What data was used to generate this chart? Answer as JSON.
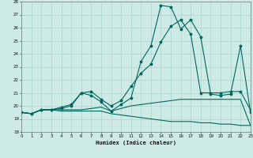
{
  "xlabel": "Humidex (Indice chaleur)",
  "xlim_min": 0,
  "xlim_max": 23,
  "ylim_min": 18,
  "ylim_max": 28,
  "yticks": [
    18,
    19,
    20,
    21,
    22,
    23,
    24,
    25,
    26,
    27,
    28
  ],
  "xticks": [
    0,
    1,
    2,
    3,
    4,
    5,
    6,
    7,
    8,
    9,
    10,
    11,
    12,
    13,
    14,
    15,
    16,
    17,
    18,
    19,
    20,
    21,
    22,
    23
  ],
  "bg_color": "#ceeae4",
  "grid_color": "#a8d4cc",
  "line_color": "#006660",
  "x": [
    0,
    1,
    2,
    3,
    4,
    5,
    6,
    7,
    8,
    9,
    10,
    11,
    12,
    13,
    14,
    15,
    16,
    17,
    18,
    19,
    20,
    21,
    22,
    23
  ],
  "line1_y": [
    19.5,
    19.4,
    19.7,
    19.7,
    19.8,
    20.0,
    21.0,
    20.8,
    20.3,
    19.6,
    20.1,
    20.6,
    23.4,
    24.6,
    27.7,
    27.6,
    25.9,
    26.6,
    25.3,
    20.9,
    20.8,
    20.9,
    24.6,
    19.5
  ],
  "line2_y": [
    19.5,
    19.4,
    19.7,
    19.7,
    19.9,
    20.1,
    21.0,
    21.1,
    20.5,
    20.0,
    20.4,
    21.5,
    22.5,
    23.2,
    24.9,
    26.1,
    26.6,
    25.5,
    21.0,
    21.0,
    21.0,
    21.1,
    21.1,
    19.7
  ],
  "line3_y": [
    19.5,
    19.4,
    19.7,
    19.7,
    19.7,
    19.7,
    19.7,
    19.8,
    19.9,
    19.6,
    19.8,
    20.0,
    20.1,
    20.2,
    20.3,
    20.4,
    20.5,
    20.5,
    20.5,
    20.5,
    20.5,
    20.5,
    20.5,
    18.5
  ],
  "line4_y": [
    19.5,
    19.4,
    19.7,
    19.7,
    19.6,
    19.6,
    19.6,
    19.6,
    19.6,
    19.4,
    19.3,
    19.2,
    19.1,
    19.0,
    18.9,
    18.8,
    18.8,
    18.8,
    18.7,
    18.7,
    18.6,
    18.6,
    18.5,
    18.5
  ]
}
